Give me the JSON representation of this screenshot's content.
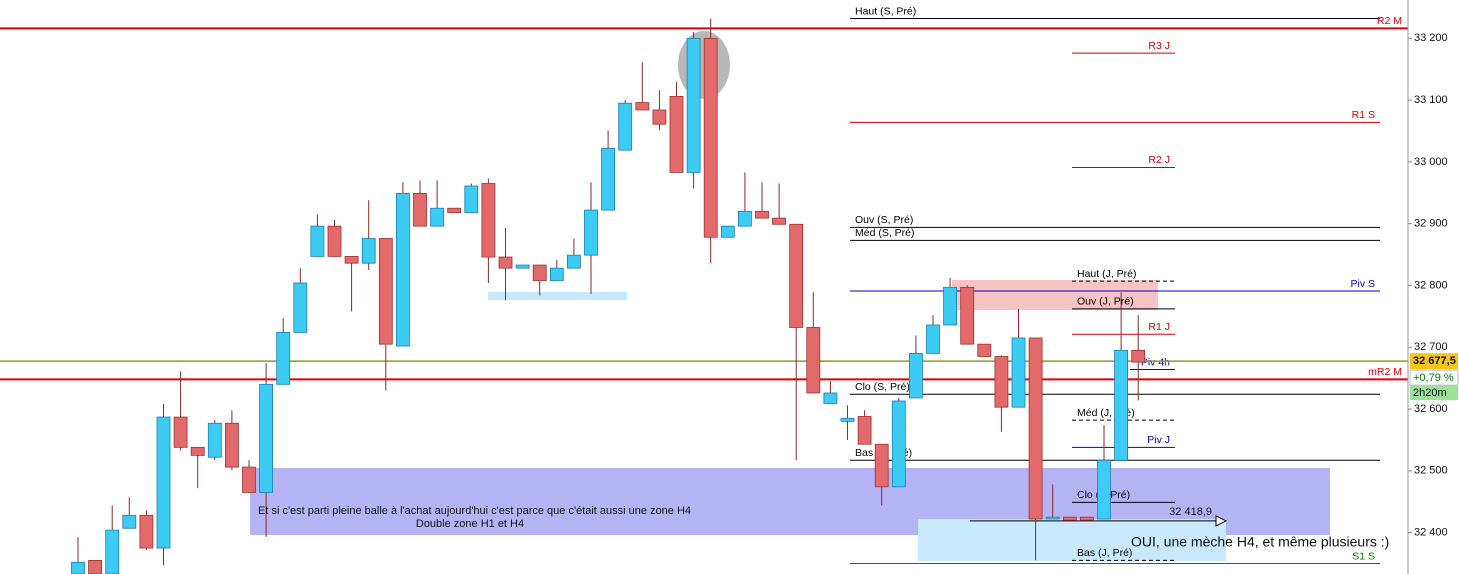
{
  "chart_data": {
    "type": "candlestick",
    "ylim": [
      32333,
      33262
    ],
    "yticks": [
      {
        "value": 33200,
        "label": "33 200"
      },
      {
        "value": 33100,
        "label": "33 100"
      },
      {
        "value": 33000,
        "label": "33 000"
      },
      {
        "value": 32900,
        "label": "32 900"
      },
      {
        "value": 32800,
        "label": "32 800"
      },
      {
        "value": 32700,
        "label": "32 700"
      },
      {
        "value": 32600,
        "label": "32 600"
      },
      {
        "value": 32500,
        "label": "32 500"
      },
      {
        "value": 32400,
        "label": "32 400"
      }
    ],
    "up_color": "#3ccbf2",
    "down_color": "#e36a6a",
    "open": [
      32333,
      32355,
      32333,
      32407,
      32428,
      32375,
      32587,
      32538,
      32522,
      32577,
      32506,
      32465,
      32640,
      32724,
      32847,
      32896,
      32847,
      32836,
      32876,
      32702,
      32949,
      32896,
      32925,
      32918,
      32965,
      32846,
      32828,
      32833,
      32808,
      32828,
      32849,
      32922,
      33019,
      33096,
      33084,
      33106,
      32983,
      33200,
      32878,
      32896,
      32920,
      32909,
      32899,
      32732,
      32609,
      32580,
      32588,
      32543,
      32474,
      32618,
      32690,
      32736,
      32797,
      32705,
      32685,
      32603,
      32715,
      32422,
      32425,
      32425,
      32422,
      32517,
      32695
    ],
    "high": [
      32393,
      32355,
      32444,
      32457,
      32436,
      32608,
      32661,
      32538,
      32582,
      32598,
      32517,
      32674,
      32747,
      32828,
      32915,
      32906,
      32847,
      32938,
      32876,
      32967,
      32970,
      32970,
      32925,
      32965,
      32973,
      32893,
      32833,
      32833,
      32841,
      32876,
      32967,
      33051,
      33100,
      33161,
      33116,
      33129,
      33210,
      33232,
      32896,
      32983,
      32967,
      32965,
      32899,
      32789,
      32645,
      32606,
      32598,
      32543,
      32618,
      32719,
      32752,
      32812,
      32800,
      32705,
      32687,
      32762,
      32715,
      32478,
      32425,
      32425,
      32574,
      32789,
      32752
    ],
    "low": [
      32333,
      32333,
      32333,
      32407,
      32372,
      32347,
      32533,
      32472,
      32517,
      32501,
      32465,
      32393,
      32640,
      32724,
      32847,
      32847,
      32758,
      32825,
      32630,
      32702,
      32896,
      32896,
      32918,
      32918,
      32804,
      32776,
      32828,
      32784,
      32808,
      32828,
      32786,
      32922,
      33019,
      33084,
      33051,
      32983,
      32957,
      32836,
      32878,
      32896,
      32909,
      32899,
      32517,
      32626,
      32609,
      32550,
      32543,
      32444,
      32474,
      32618,
      32690,
      32736,
      32705,
      32685,
      32563,
      32603,
      32355,
      32422,
      32420,
      32420,
      32422,
      32517,
      32614
    ],
    "close": [
      32352,
      32333,
      32404,
      32428,
      32375,
      32587,
      32538,
      32525,
      32577,
      32506,
      32465,
      32640,
      32724,
      32804,
      32896,
      32847,
      32836,
      32876,
      32705,
      32949,
      32896,
      32925,
      32918,
      32961,
      32846,
      32828,
      32833,
      32808,
      32828,
      32849,
      32922,
      33022,
      33095,
      33084,
      33061,
      32983,
      33200,
      32878,
      32896,
      32920,
      32909,
      32899,
      32732,
      32626,
      32626,
      32585,
      32543,
      32474,
      32613,
      32690,
      32736,
      32797,
      32705,
      32685,
      32603,
      32715,
      32422,
      32425,
      32420,
      32420,
      32517,
      32695,
      32676
    ],
    "levels": [
      {
        "name": "Haut (S, Pré)",
        "value": 33232,
        "color": "#000000",
        "span": "week"
      },
      {
        "name": "R2 M",
        "value": 33216,
        "color": "#e00000",
        "span": "full",
        "thick": true
      },
      {
        "name": "R3 J",
        "value": 33176,
        "color": "#d00000",
        "span": "day"
      },
      {
        "name": "R1 S",
        "value": 33064,
        "color": "#d00000",
        "span": "week"
      },
      {
        "name": "R2 J",
        "value": 32991,
        "color": "#d00000",
        "span": "day"
      },
      {
        "name": "Ouv (S, Pré)",
        "value": 32894,
        "color": "#000000",
        "span": "week"
      },
      {
        "name": "Méd (S, Pré)",
        "value": 32873,
        "color": "#000000",
        "span": "week"
      },
      {
        "name": "Haut (J, Pré)",
        "value": 32807,
        "color": "#000000",
        "span": "day",
        "dashed": true
      },
      {
        "name": "Piv S",
        "value": 32791,
        "color": "#0000c0",
        "span": "week"
      },
      {
        "name": "Ouv (J, Pré)",
        "value": 32762,
        "color": "#000000",
        "span": "day"
      },
      {
        "name": "R1 J",
        "value": 32721,
        "color": "#d00000",
        "span": "day"
      },
      {
        "name": "Piv 4h",
        "value": 32664,
        "color": "#0000c0",
        "span": "short"
      },
      {
        "name": "mR2 M",
        "value": 32648,
        "color": "#e00000",
        "span": "full",
        "thick": true
      },
      {
        "name": "Clo (S, Pré)",
        "value": 32624,
        "color": "#000000",
        "span": "week"
      },
      {
        "name": "Méd (J, Pré)",
        "value": 32582,
        "color": "#000000",
        "span": "day",
        "dashed": true
      },
      {
        "name": "Piv J",
        "value": 32538,
        "color": "#0000c0",
        "span": "day"
      },
      {
        "name": "Bas (S, Pré)",
        "value": 32517,
        "color": "#000000",
        "span": "week"
      },
      {
        "name": "Clo (J, Pré)",
        "value": 32449,
        "color": "#000000",
        "span": "day"
      },
      {
        "name": "Bas (J, Pré)",
        "value": 32355,
        "color": "#000000",
        "span": "day",
        "dashed": true
      },
      {
        "name": "S1 S",
        "value": 32350,
        "color": "#008000",
        "span": "week"
      }
    ],
    "last_price": {
      "value": 32677.5,
      "label": "32 677,5"
    },
    "change": "+0,79 %",
    "countdown": "2h20m",
    "marker_price": {
      "value": 32418.9,
      "label": "32 418,9"
    },
    "annotations": [
      "Et si c'est parti pleine balle à l'achat aujourd'hui c'est parce que c'était aussi une zone H4",
      "Double zone H1 et H4",
      "OUI, une mèche H4, et même plusieurs :)"
    ]
  }
}
